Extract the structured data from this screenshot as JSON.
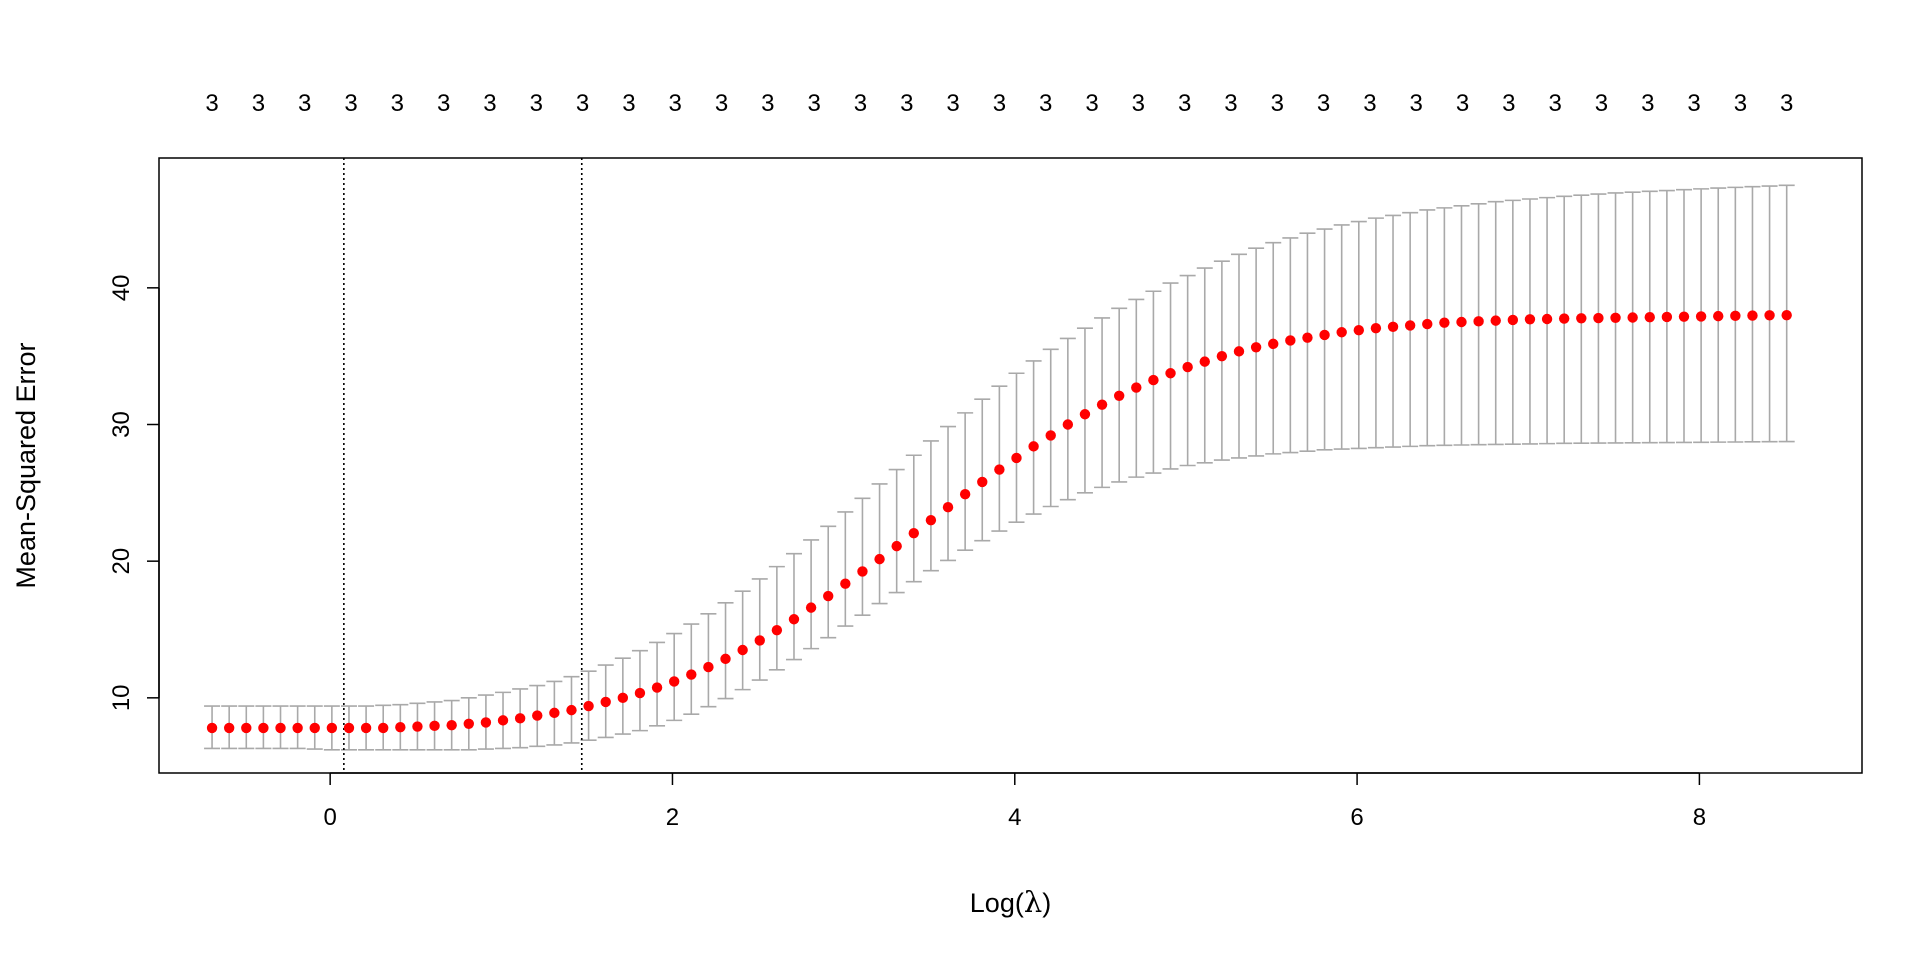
{
  "chart_data": {
    "type": "scatter",
    "title": "",
    "xlabel": "Log(λ)",
    "xlabel_prefix": "Log(",
    "xlabel_symbol": "λ",
    "xlabel_suffix": ")",
    "ylabel": "Mean-Squared Error",
    "xlim": [
      -1.0,
      8.95
    ],
    "ylim": [
      4.5,
      49.5
    ],
    "x_ticks": [
      0,
      2,
      4,
      6,
      8
    ],
    "x_tick_labels": [
      "0",
      "2",
      "4",
      "6",
      "8"
    ],
    "y_ticks": [
      10,
      20,
      30,
      40
    ],
    "y_tick_labels": [
      "10",
      "20",
      "30",
      "40"
    ],
    "top_labels": [
      "3",
      "3",
      "3",
      "3",
      "3",
      "3",
      "3",
      "3",
      "3",
      "3",
      "3",
      "3",
      "3",
      "3",
      "3",
      "3",
      "3",
      "3",
      "3",
      "3",
      "3",
      "3",
      "3",
      "3",
      "3",
      "3",
      "3",
      "3",
      "3",
      "3",
      "3",
      "3",
      "3",
      "3",
      "3"
    ],
    "vlines": [
      0.08,
      1.47
    ],
    "point_color": "#ff0000",
    "errorbar_color": "#a9a9a9",
    "grid": false,
    "legend": "none",
    "series": [
      {
        "x": [
          -0.69,
          -0.59,
          -0.49,
          -0.39,
          -0.29,
          -0.19,
          -0.09,
          0.01,
          0.11,
          0.21,
          0.31,
          0.41,
          0.51,
          0.61,
          0.71,
          0.81,
          0.91,
          1.01,
          1.11,
          1.21,
          1.31,
          1.41,
          1.51,
          1.61,
          1.71,
          1.81,
          1.91,
          2.01,
          2.11,
          2.21,
          2.31,
          2.41,
          2.51,
          2.61,
          2.71,
          2.81,
          2.91,
          3.01,
          3.11,
          3.21,
          3.31,
          3.41,
          3.51,
          3.61,
          3.71,
          3.81,
          3.91,
          4.01,
          4.11,
          4.21,
          4.31,
          4.41,
          4.51,
          4.61,
          4.71,
          4.81,
          4.91,
          5.01,
          5.11,
          5.21,
          5.31,
          5.41,
          5.51,
          5.61,
          5.71,
          5.81,
          5.91,
          6.01,
          6.11,
          6.21,
          6.31,
          6.41,
          6.51,
          6.61,
          6.71,
          6.81,
          6.91,
          7.01,
          7.11,
          7.21,
          7.31,
          7.41,
          7.51,
          7.61,
          7.71,
          7.81,
          7.91,
          8.01,
          8.11,
          8.21,
          8.31,
          8.41,
          8.51
        ],
        "y": [
          7.8,
          7.8,
          7.8,
          7.8,
          7.8,
          7.8,
          7.8,
          7.8,
          7.8,
          7.8,
          7.8,
          7.85,
          7.9,
          7.95,
          8.0,
          8.1,
          8.2,
          8.35,
          8.5,
          8.7,
          8.9,
          9.1,
          9.4,
          9.7,
          10.0,
          10.35,
          10.75,
          11.2,
          11.7,
          12.25,
          12.85,
          13.5,
          14.2,
          14.95,
          15.75,
          16.6,
          17.45,
          18.35,
          19.25,
          20.15,
          21.1,
          22.05,
          23.0,
          23.95,
          24.9,
          25.8,
          26.7,
          27.55,
          28.4,
          29.2,
          30.0,
          30.75,
          31.45,
          32.1,
          32.7,
          33.25,
          33.75,
          34.2,
          34.6,
          35.0,
          35.35,
          35.65,
          35.9,
          36.15,
          36.35,
          36.55,
          36.75,
          36.9,
          37.05,
          37.15,
          37.25,
          37.35,
          37.45,
          37.5,
          37.55,
          37.6,
          37.65,
          37.7,
          37.72,
          37.75,
          37.77,
          37.79,
          37.81,
          37.83,
          37.85,
          37.87,
          37.89,
          37.91,
          37.93,
          37.95,
          37.97,
          37.99,
          38.0
        ],
        "upper": [
          9.4,
          9.4,
          9.4,
          9.4,
          9.4,
          9.4,
          9.4,
          9.4,
          9.4,
          9.4,
          9.45,
          9.5,
          9.6,
          9.7,
          9.8,
          10.0,
          10.2,
          10.4,
          10.65,
          10.9,
          11.2,
          11.55,
          11.95,
          12.4,
          12.9,
          13.45,
          14.05,
          14.7,
          15.4,
          16.15,
          16.95,
          17.8,
          18.7,
          19.6,
          20.55,
          21.55,
          22.55,
          23.6,
          24.6,
          25.65,
          26.7,
          27.75,
          28.8,
          29.85,
          30.85,
          31.85,
          32.8,
          33.75,
          34.65,
          35.5,
          36.3,
          37.05,
          37.8,
          38.5,
          39.15,
          39.75,
          40.35,
          40.9,
          41.45,
          41.95,
          42.45,
          42.9,
          43.3,
          43.65,
          44.0,
          44.3,
          44.6,
          44.85,
          45.1,
          45.3,
          45.5,
          45.7,
          45.85,
          46.0,
          46.15,
          46.3,
          46.4,
          46.5,
          46.6,
          46.7,
          46.78,
          46.86,
          46.94,
          47.0,
          47.06,
          47.12,
          47.18,
          47.24,
          47.3,
          47.35,
          47.4,
          47.45,
          47.5
        ],
        "lower": [
          6.3,
          6.3,
          6.3,
          6.3,
          6.3,
          6.3,
          6.25,
          6.2,
          6.2,
          6.2,
          6.2,
          6.2,
          6.2,
          6.2,
          6.2,
          6.2,
          6.25,
          6.3,
          6.35,
          6.45,
          6.55,
          6.7,
          6.9,
          7.1,
          7.35,
          7.6,
          7.95,
          8.35,
          8.8,
          9.35,
          9.95,
          10.6,
          11.3,
          12.05,
          12.8,
          13.6,
          14.4,
          15.25,
          16.05,
          16.9,
          17.7,
          18.5,
          19.3,
          20.05,
          20.8,
          21.5,
          22.2,
          22.85,
          23.45,
          24.0,
          24.5,
          25.0,
          25.4,
          25.8,
          26.15,
          26.45,
          26.75,
          27.0,
          27.2,
          27.4,
          27.55,
          27.7,
          27.85,
          27.95,
          28.05,
          28.15,
          28.2,
          28.25,
          28.3,
          28.35,
          28.4,
          28.45,
          28.48,
          28.5,
          28.52,
          28.54,
          28.56,
          28.58,
          28.6,
          28.62,
          28.63,
          28.64,
          28.65,
          28.66,
          28.67,
          28.68,
          28.69,
          28.7,
          28.71,
          28.72,
          28.73,
          28.74,
          28.75
        ]
      }
    ]
  }
}
